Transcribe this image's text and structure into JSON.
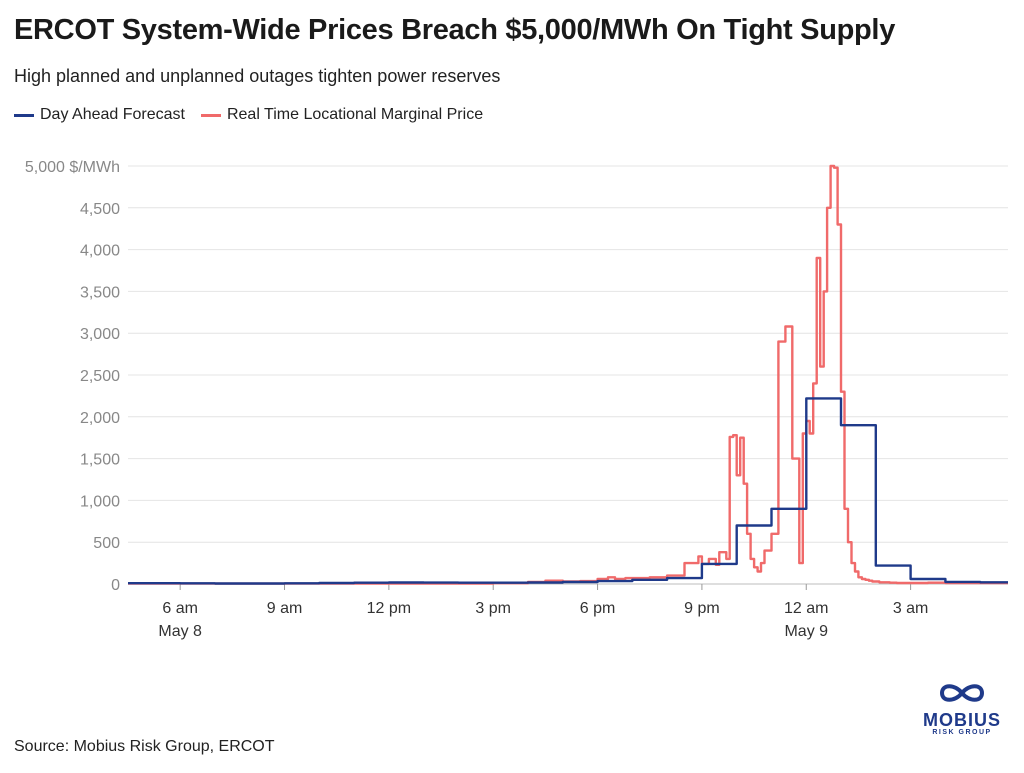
{
  "header": {
    "title": "ERCOT System-Wide Prices Breach $5,000/MWh On Tight Supply",
    "subtitle": "High planned and unplanned outages tighten power reserves"
  },
  "legend": [
    {
      "label": "Day Ahead Forecast",
      "color": "#1f3a8a"
    },
    {
      "label": "Real Time Locational Marginal Price",
      "color": "#f06a6a"
    }
  ],
  "footer": {
    "source": "Source: Mobius Risk Group, ERCOT",
    "logo_word": "MOBIUS",
    "logo_sub": "RISK GROUP"
  },
  "chart_data": {
    "type": "line",
    "title": "ERCOT System-Wide Prices Breach $5,000/MWh On Tight Supply",
    "ylabel": "$/MWh",
    "ylim": [
      0,
      5000
    ],
    "xlim": [
      4.5,
      29.8
    ],
    "x_unit": "hours since 12 am May 8",
    "y_ticks": [
      {
        "value": 5000,
        "label": "5,000 $/MWh"
      },
      {
        "value": 4500,
        "label": "4,500"
      },
      {
        "value": 4000,
        "label": "4,000"
      },
      {
        "value": 3500,
        "label": "3,500"
      },
      {
        "value": 3000,
        "label": "3,000"
      },
      {
        "value": 2500,
        "label": "2,500"
      },
      {
        "value": 2000,
        "label": "2,000"
      },
      {
        "value": 1500,
        "label": "1,500"
      },
      {
        "value": 1000,
        "label": "1,000"
      },
      {
        "value": 500,
        "label": "500"
      },
      {
        "value": 0,
        "label": "0"
      }
    ],
    "x_ticks": [
      {
        "hour": 6,
        "label": "6 am",
        "sublabel": "May 8"
      },
      {
        "hour": 9,
        "label": "9 am",
        "sublabel": ""
      },
      {
        "hour": 12,
        "label": "12 pm",
        "sublabel": ""
      },
      {
        "hour": 15,
        "label": "3 pm",
        "sublabel": ""
      },
      {
        "hour": 18,
        "label": "6 pm",
        "sublabel": ""
      },
      {
        "hour": 21,
        "label": "9 pm",
        "sublabel": ""
      },
      {
        "hour": 24,
        "label": "12 am",
        "sublabel": "May 9"
      },
      {
        "hour": 27,
        "label": "3 am",
        "sublabel": ""
      }
    ],
    "series": [
      {
        "name": "Day Ahead Forecast",
        "color": "#1f3a8a",
        "step": true,
        "x": [
          4.5,
          6,
          7,
          8,
          9,
          10,
          11,
          12,
          13,
          14,
          15,
          16,
          17,
          18,
          19,
          20,
          21,
          22,
          23,
          24,
          25,
          26,
          27,
          28,
          29,
          29.8
        ],
        "y": [
          10,
          8,
          6,
          6,
          8,
          12,
          16,
          18,
          17,
          15,
          15,
          18,
          24,
          35,
          50,
          70,
          240,
          700,
          900,
          2220,
          1900,
          220,
          60,
          25,
          20,
          20
        ]
      },
      {
        "name": "Real Time Locational Marginal Price",
        "color": "#f06a6a",
        "step": true,
        "x": [
          4.5,
          6,
          8,
          10,
          12,
          14,
          15,
          16,
          16.5,
          17,
          17.5,
          18,
          18.3,
          18.5,
          18.8,
          19,
          19.5,
          20,
          20.5,
          20.9,
          21.0,
          21.2,
          21.4,
          21.5,
          21.7,
          21.8,
          21.9,
          22.0,
          22.1,
          22.2,
          22.3,
          22.4,
          22.5,
          22.6,
          22.7,
          22.8,
          23.0,
          23.2,
          23.4,
          23.6,
          23.8,
          23.9,
          24.0,
          24.1,
          24.2,
          24.3,
          24.4,
          24.5,
          24.6,
          24.7,
          24.8,
          24.9,
          25.0,
          25.1,
          25.2,
          25.3,
          25.4,
          25.5,
          25.6,
          25.7,
          25.8,
          25.9,
          26.0,
          26.1,
          26.2,
          26.4,
          26.6,
          27.0,
          27.5,
          28.0,
          29.0
        ],
        "y": [
          5,
          5,
          5,
          5,
          5,
          5,
          10,
          25,
          40,
          30,
          35,
          60,
          80,
          60,
          70,
          70,
          80,
          100,
          250,
          330,
          240,
          300,
          230,
          380,
          300,
          1760,
          1780,
          1300,
          1750,
          1200,
          600,
          300,
          200,
          150,
          250,
          400,
          600,
          2900,
          3080,
          1500,
          250,
          1800,
          1950,
          1800,
          2400,
          3900,
          2600,
          3500,
          4500,
          5000,
          4980,
          4300,
          2300,
          900,
          500,
          250,
          150,
          80,
          60,
          50,
          40,
          30,
          30,
          20,
          20,
          15,
          12,
          12,
          15,
          12,
          12
        ]
      }
    ]
  }
}
